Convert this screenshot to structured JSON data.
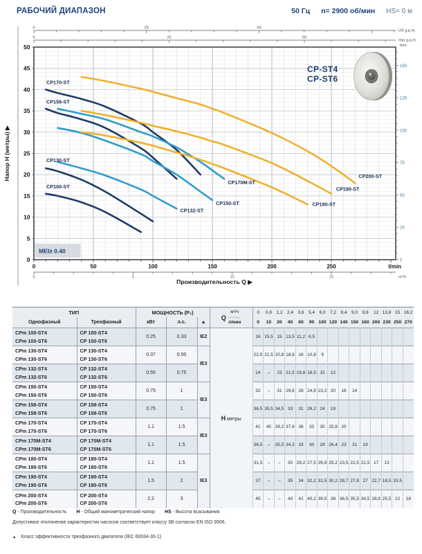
{
  "header": {
    "title": "РАБОЧИЙ ДИАПАЗОН",
    "frequency": "50 Гц",
    "speed": "n= 2900 об/мин",
    "suction": "HS= 0 м"
  },
  "chart_data": {
    "type": "line",
    "x_axis": {
      "title": "Производительность Q",
      "arrow": "▶",
      "unit_lmin": "l/min",
      "unit_m3h": "m³/h",
      "unit_usgpm": "US g.p.m.",
      "unit_impgpm": "Imp g.p.m.",
      "range_lmin": [
        0,
        304
      ],
      "ticks_lmin": [
        0,
        50,
        100,
        150,
        200,
        250
      ],
      "ticks_m3h": [
        0,
        5,
        10,
        15
      ],
      "ticks_usgpm": [
        0,
        25,
        50
      ],
      "ticks_impgpm": [
        0,
        25,
        50
      ]
    },
    "y_axis": {
      "title": "Напор H (метры)",
      "arrow": "▶",
      "unit_feet": "feet",
      "range_m": [
        0,
        50
      ],
      "ticks_m": [
        0,
        5,
        10,
        15,
        20,
        25,
        30,
        35,
        40,
        45,
        50
      ],
      "ticks_feet": [
        0,
        25,
        50,
        75,
        100,
        125,
        150
      ]
    },
    "grid": "on",
    "family_labels": [
      "CP-ST4",
      "CP-ST6"
    ],
    "mei_badge": "MEI≥ 0.40",
    "colors": {
      "navy": "#1d3a66",
      "blue": "#2f9cc9",
      "yellow": "#f0b02c",
      "label": "#1a2f55"
    },
    "series": [
      {
        "name": "CP100-ST",
        "color": "navy",
        "label_q": 10.5,
        "label_h": 17.2,
        "points": [
          [
            10,
            15.5
          ],
          [
            20,
            15
          ],
          [
            40,
            13.5
          ],
          [
            60,
            11.2
          ],
          [
            90,
            6.5
          ]
        ]
      },
      {
        "name": "CP130-ST",
        "color": "navy",
        "label_q": 10.5,
        "label_h": 23.4,
        "points": [
          [
            10,
            21.5
          ],
          [
            20,
            20.8
          ],
          [
            40,
            18.8
          ],
          [
            60,
            16
          ],
          [
            90,
            10.8
          ],
          [
            100,
            9
          ]
        ]
      },
      {
        "name": "CP158-ST",
        "color": "navy",
        "label_q": 10.5,
        "label_h": 37.1,
        "points": [
          [
            10,
            35.5
          ],
          [
            20,
            34.5
          ],
          [
            40,
            33
          ],
          [
            60,
            31
          ],
          [
            90,
            26.2
          ],
          [
            100,
            24
          ],
          [
            120,
            19
          ]
        ]
      },
      {
        "name": "CP170-ST",
        "color": "navy",
        "label_q": 10.5,
        "label_h": 41.7,
        "points": [
          [
            10,
            40
          ],
          [
            20,
            39.2
          ],
          [
            40,
            37.8
          ],
          [
            60,
            36
          ],
          [
            90,
            32
          ],
          [
            100,
            30
          ],
          [
            120,
            25.8
          ],
          [
            140,
            20
          ]
        ]
      },
      {
        "name": "CP132-ST",
        "color": "blue",
        "label_q": 123,
        "label_h": 11.6,
        "points": [
          [
            20,
            23
          ],
          [
            40,
            21.5
          ],
          [
            60,
            19.8
          ],
          [
            90,
            16.5
          ],
          [
            100,
            15
          ],
          [
            120,
            12
          ]
        ]
      },
      {
        "name": "CP150-ST",
        "color": "blue",
        "label_q": 153,
        "label_h": 13.3,
        "points": [
          [
            20,
            31
          ],
          [
            40,
            29.8
          ],
          [
            60,
            28
          ],
          [
            90,
            24.8
          ],
          [
            100,
            23.2
          ],
          [
            120,
            20
          ],
          [
            140,
            16
          ],
          [
            150,
            14
          ]
        ]
      },
      {
        "name": "CP170M-ST",
        "color": "blue",
        "label_q": 163,
        "label_h": 18.2,
        "points": [
          [
            20,
            35.5
          ],
          [
            40,
            34.3
          ],
          [
            60,
            33
          ],
          [
            90,
            30
          ],
          [
            100,
            29
          ],
          [
            120,
            26.4
          ],
          [
            140,
            23
          ],
          [
            150,
            21
          ],
          [
            160,
            19
          ]
        ]
      },
      {
        "name": "CP180-ST",
        "color": "yellow",
        "label_q": 234,
        "label_h": 13.0,
        "points": [
          [
            40,
            30
          ],
          [
            60,
            29.2
          ],
          [
            90,
            27.5
          ],
          [
            100,
            26.8
          ],
          [
            120,
            25.2
          ],
          [
            140,
            23.5
          ],
          [
            150,
            22.5
          ],
          [
            160,
            21.5
          ],
          [
            200,
            17
          ],
          [
            230,
            13
          ]
        ]
      },
      {
        "name": "CP190-ST",
        "color": "yellow",
        "label_q": 254,
        "label_h": 16.6,
        "points": [
          [
            40,
            35
          ],
          [
            60,
            34
          ],
          [
            90,
            32.2
          ],
          [
            100,
            31.5
          ],
          [
            120,
            30.2
          ],
          [
            140,
            28.7
          ],
          [
            150,
            27.8
          ],
          [
            160,
            27
          ],
          [
            200,
            22.7
          ],
          [
            230,
            18.5
          ],
          [
            250,
            15.5
          ]
        ]
      },
      {
        "name": "CP200-ST",
        "color": "yellow",
        "label_q": 273,
        "label_h": 19.6,
        "points": [
          [
            40,
            43
          ],
          [
            60,
            42
          ],
          [
            90,
            40.2
          ],
          [
            100,
            39.5
          ],
          [
            120,
            38
          ],
          [
            140,
            36.5
          ],
          [
            150,
            35.5
          ],
          [
            160,
            34.5
          ],
          [
            200,
            29.8
          ],
          [
            230,
            25.5
          ],
          [
            250,
            22
          ],
          [
            270,
            18
          ]
        ]
      }
    ]
  },
  "table": {
    "headers": {
      "type": "ТИП",
      "single": "Однофазный",
      "three": "Трехфазный",
      "power": "МОЩНОСТЬ (P₂)",
      "kw": "кВт",
      "hp": "л.с.",
      "triangle": "▲",
      "q": "Q",
      "m3h": "м³/ч",
      "lmin": "л/мин",
      "h": "H",
      "h_unit": "метры",
      "m3h_values": [
        "0",
        "0,6",
        "1,2",
        "2,4",
        "3,6",
        "5,4",
        "6,0",
        "7,2",
        "8,4",
        "9,0",
        "9,6",
        "12",
        "13,8",
        "15",
        "16,2"
      ],
      "lmin_values": [
        "0",
        "10",
        "20",
        "40",
        "60",
        "90",
        "100",
        "120",
        "140",
        "150",
        "160",
        "200",
        "230",
        "250",
        "270"
      ]
    },
    "rows": [
      {
        "single": [
          "CPm 100-ST4",
          "CPm 100-ST6"
        ],
        "three": [
          "CP 100-ST4",
          "CP 100-ST6"
        ],
        "kw": "0.25",
        "hp": "0.33",
        "ie": "IE2",
        "ie_span": 1,
        "h": [
          "16",
          "15,5",
          "15",
          "13,5",
          "11,2",
          "6,5",
          "",
          "",
          "",
          "",
          "",
          "",
          "",
          "",
          ""
        ]
      },
      {
        "single": [
          "CPm 130-ST4",
          "CPm 130-ST6"
        ],
        "three": [
          "CP 130-ST4",
          "CP 130-ST6"
        ],
        "kw": "0.37",
        "hp": "0.50",
        "ie": "IE3",
        "ie_span": 2,
        "h": [
          "22,5",
          "21,5",
          "20,8",
          "18,8",
          "16",
          "10,8",
          "9",
          "",
          "",
          "",
          "",
          "",
          "",
          "",
          ""
        ]
      },
      {
        "single": [
          "CPm 132-ST4",
          "CPm 132-ST6"
        ],
        "three": [
          "CP 132-ST4",
          "CP 132-ST6"
        ],
        "kw": "0.55",
        "hp": "0.75",
        "h": [
          "24",
          "–",
          "23",
          "21,5",
          "19,8",
          "16,5",
          "15",
          "12",
          "",
          "",
          "",
          "",
          "",
          "",
          ""
        ]
      },
      {
        "single": [
          "CPm 150-ST4",
          "CPm 150-ST6"
        ],
        "three": [
          "CP 150-ST4",
          "CP 150-ST6"
        ],
        "kw": "0.75",
        "hp": "1",
        "ie": "IE3",
        "ie_span": 2,
        "h": [
          "32",
          "–",
          "31",
          "29,8",
          "28",
          "24,8",
          "23,2",
          "20",
          "16",
          "14",
          "",
          "",
          "",
          "",
          ""
        ]
      },
      {
        "single": [
          "CPm 158-ST4",
          "CPm 158-ST6"
        ],
        "three": [
          "CP 158-ST4",
          "CP 158-ST6"
        ],
        "kw": "0.75",
        "hp": "1",
        "h": [
          "36,5",
          "35,5",
          "34,5",
          "33",
          "31",
          "26,2",
          "24",
          "19",
          "",
          "",
          "",
          "",
          "",
          "",
          ""
        ]
      },
      {
        "single": [
          "CPm 170-ST4",
          "CPm 170-ST6"
        ],
        "three": [
          "CP 170-ST4",
          "CP 170-ST6"
        ],
        "kw": "1.1",
        "hp": "1.5",
        "ie": "IE3",
        "ie_span": 2,
        "h": [
          "41",
          "40",
          "39,2",
          "37,8",
          "36",
          "32",
          "30",
          "25,8",
          "20",
          "",
          "",
          "",
          "",
          "",
          ""
        ]
      },
      {
        "single": [
          "CPm 170M-ST4",
          "CPm 170M-ST6"
        ],
        "three": [
          "CP 170M-ST4",
          "CP 170M-ST6"
        ],
        "kw": "1.1",
        "hp": "1.5",
        "h": [
          "36,5",
          "–",
          "35,5",
          "34,3",
          "33",
          "30",
          "29",
          "26,4",
          "23",
          "21",
          "19",
          "",
          "",
          "",
          ""
        ]
      },
      {
        "single": [
          "CPm 180-ST4",
          "CPm 180-ST6"
        ],
        "three": [
          "CP 180-ST4",
          "CP 180-ST6"
        ],
        "kw": "1.1",
        "hp": "1.5",
        "ie": "IE3",
        "ie_span": 3,
        "h": [
          "31,5",
          "–",
          "–",
          "30",
          "29,2",
          "27,5",
          "26,8",
          "25,2",
          "23,5",
          "22,5",
          "21,5",
          "17",
          "13",
          "",
          ""
        ]
      },
      {
        "single": [
          "CPm 190-ST4",
          "CPm 190-ST6"
        ],
        "three": [
          "CP 190-ST4",
          "CP 190-ST6"
        ],
        "kw": "1.5",
        "hp": "2",
        "h": [
          "37",
          "–",
          "–",
          "35",
          "34",
          "32,2",
          "31,5",
          "30,2",
          "28,7",
          "27,8",
          "27",
          "22,7",
          "18,5",
          "15,5",
          ""
        ]
      },
      {
        "single": [
          "CPm 200-ST4",
          "CPm 200-ST6"
        ],
        "three": [
          "CP 200-ST4",
          "CP 200-ST6"
        ],
        "kw": "2.2",
        "hp": "3",
        "h": [
          "45",
          "–",
          "–",
          "43",
          "42",
          "40,2",
          "39,5",
          "38",
          "36,5",
          "35,5",
          "34,5",
          "29,8",
          "25,5",
          "22",
          "18"
        ]
      }
    ]
  },
  "footnotes": {
    "legend": [
      {
        "term": "Q",
        "def": "- Производительность"
      },
      {
        "term": "H",
        "def": "- Общий манометрический напор"
      },
      {
        "term": "HS",
        "def": "- Высота всасывания"
      }
    ],
    "deviation": "Допустимое отклонение характеристик насосов соответствует классу 3В согласно EN ISO 9906.",
    "efficiency_marker": "▲",
    "efficiency": "Класс эффективности трехфазного двигателя (IEC 60034-30-1)"
  }
}
